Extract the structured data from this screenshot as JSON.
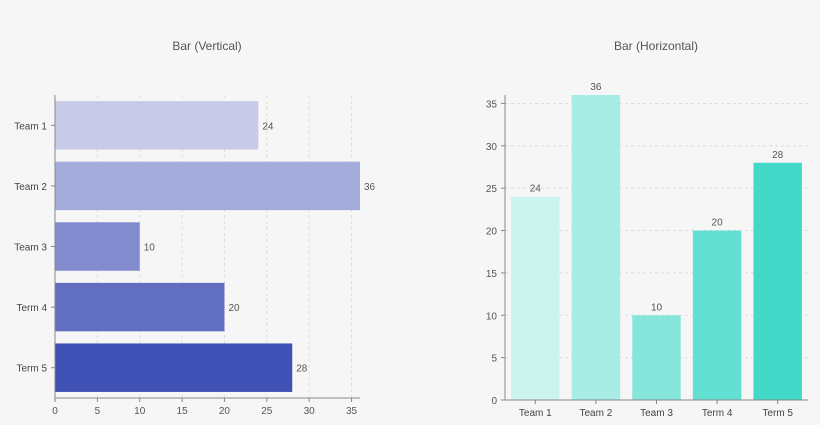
{
  "chart_data": [
    {
      "type": "bar",
      "orientation": "horizontal",
      "title": "Bar (Vertical)",
      "categories": [
        "Team 1",
        "Team 2",
        "Team 3",
        "Term 4",
        "Term 5"
      ],
      "values": [
        24,
        36,
        10,
        20,
        28
      ],
      "colors": [
        "#c8cbe8",
        "#a4acdc",
        "#818bcd",
        "#626ec2",
        "#3f51b5"
      ],
      "xlabel": "",
      "ylabel": "",
      "xlim": [
        0,
        36
      ],
      "ticks": [
        0,
        5,
        10,
        15,
        20,
        25,
        30,
        35
      ],
      "grid": true,
      "data_labels": true
    },
    {
      "type": "bar",
      "orientation": "vertical",
      "title": "Bar (Horizontal)",
      "categories": [
        "Team 1",
        "Team 2",
        "Team 3",
        "Term 4",
        "Term 5"
      ],
      "values": [
        24,
        36,
        10,
        20,
        28
      ],
      "colors": [
        "#cdf3ef",
        "#a8ede5",
        "#86e6dc",
        "#63e0d2",
        "#43d9c9"
      ],
      "xlabel": "",
      "ylabel": "",
      "ylim": [
        0,
        36
      ],
      "ticks": [
        0,
        5,
        10,
        15,
        20,
        25,
        30,
        35
      ],
      "grid": true,
      "data_labels": true
    }
  ]
}
